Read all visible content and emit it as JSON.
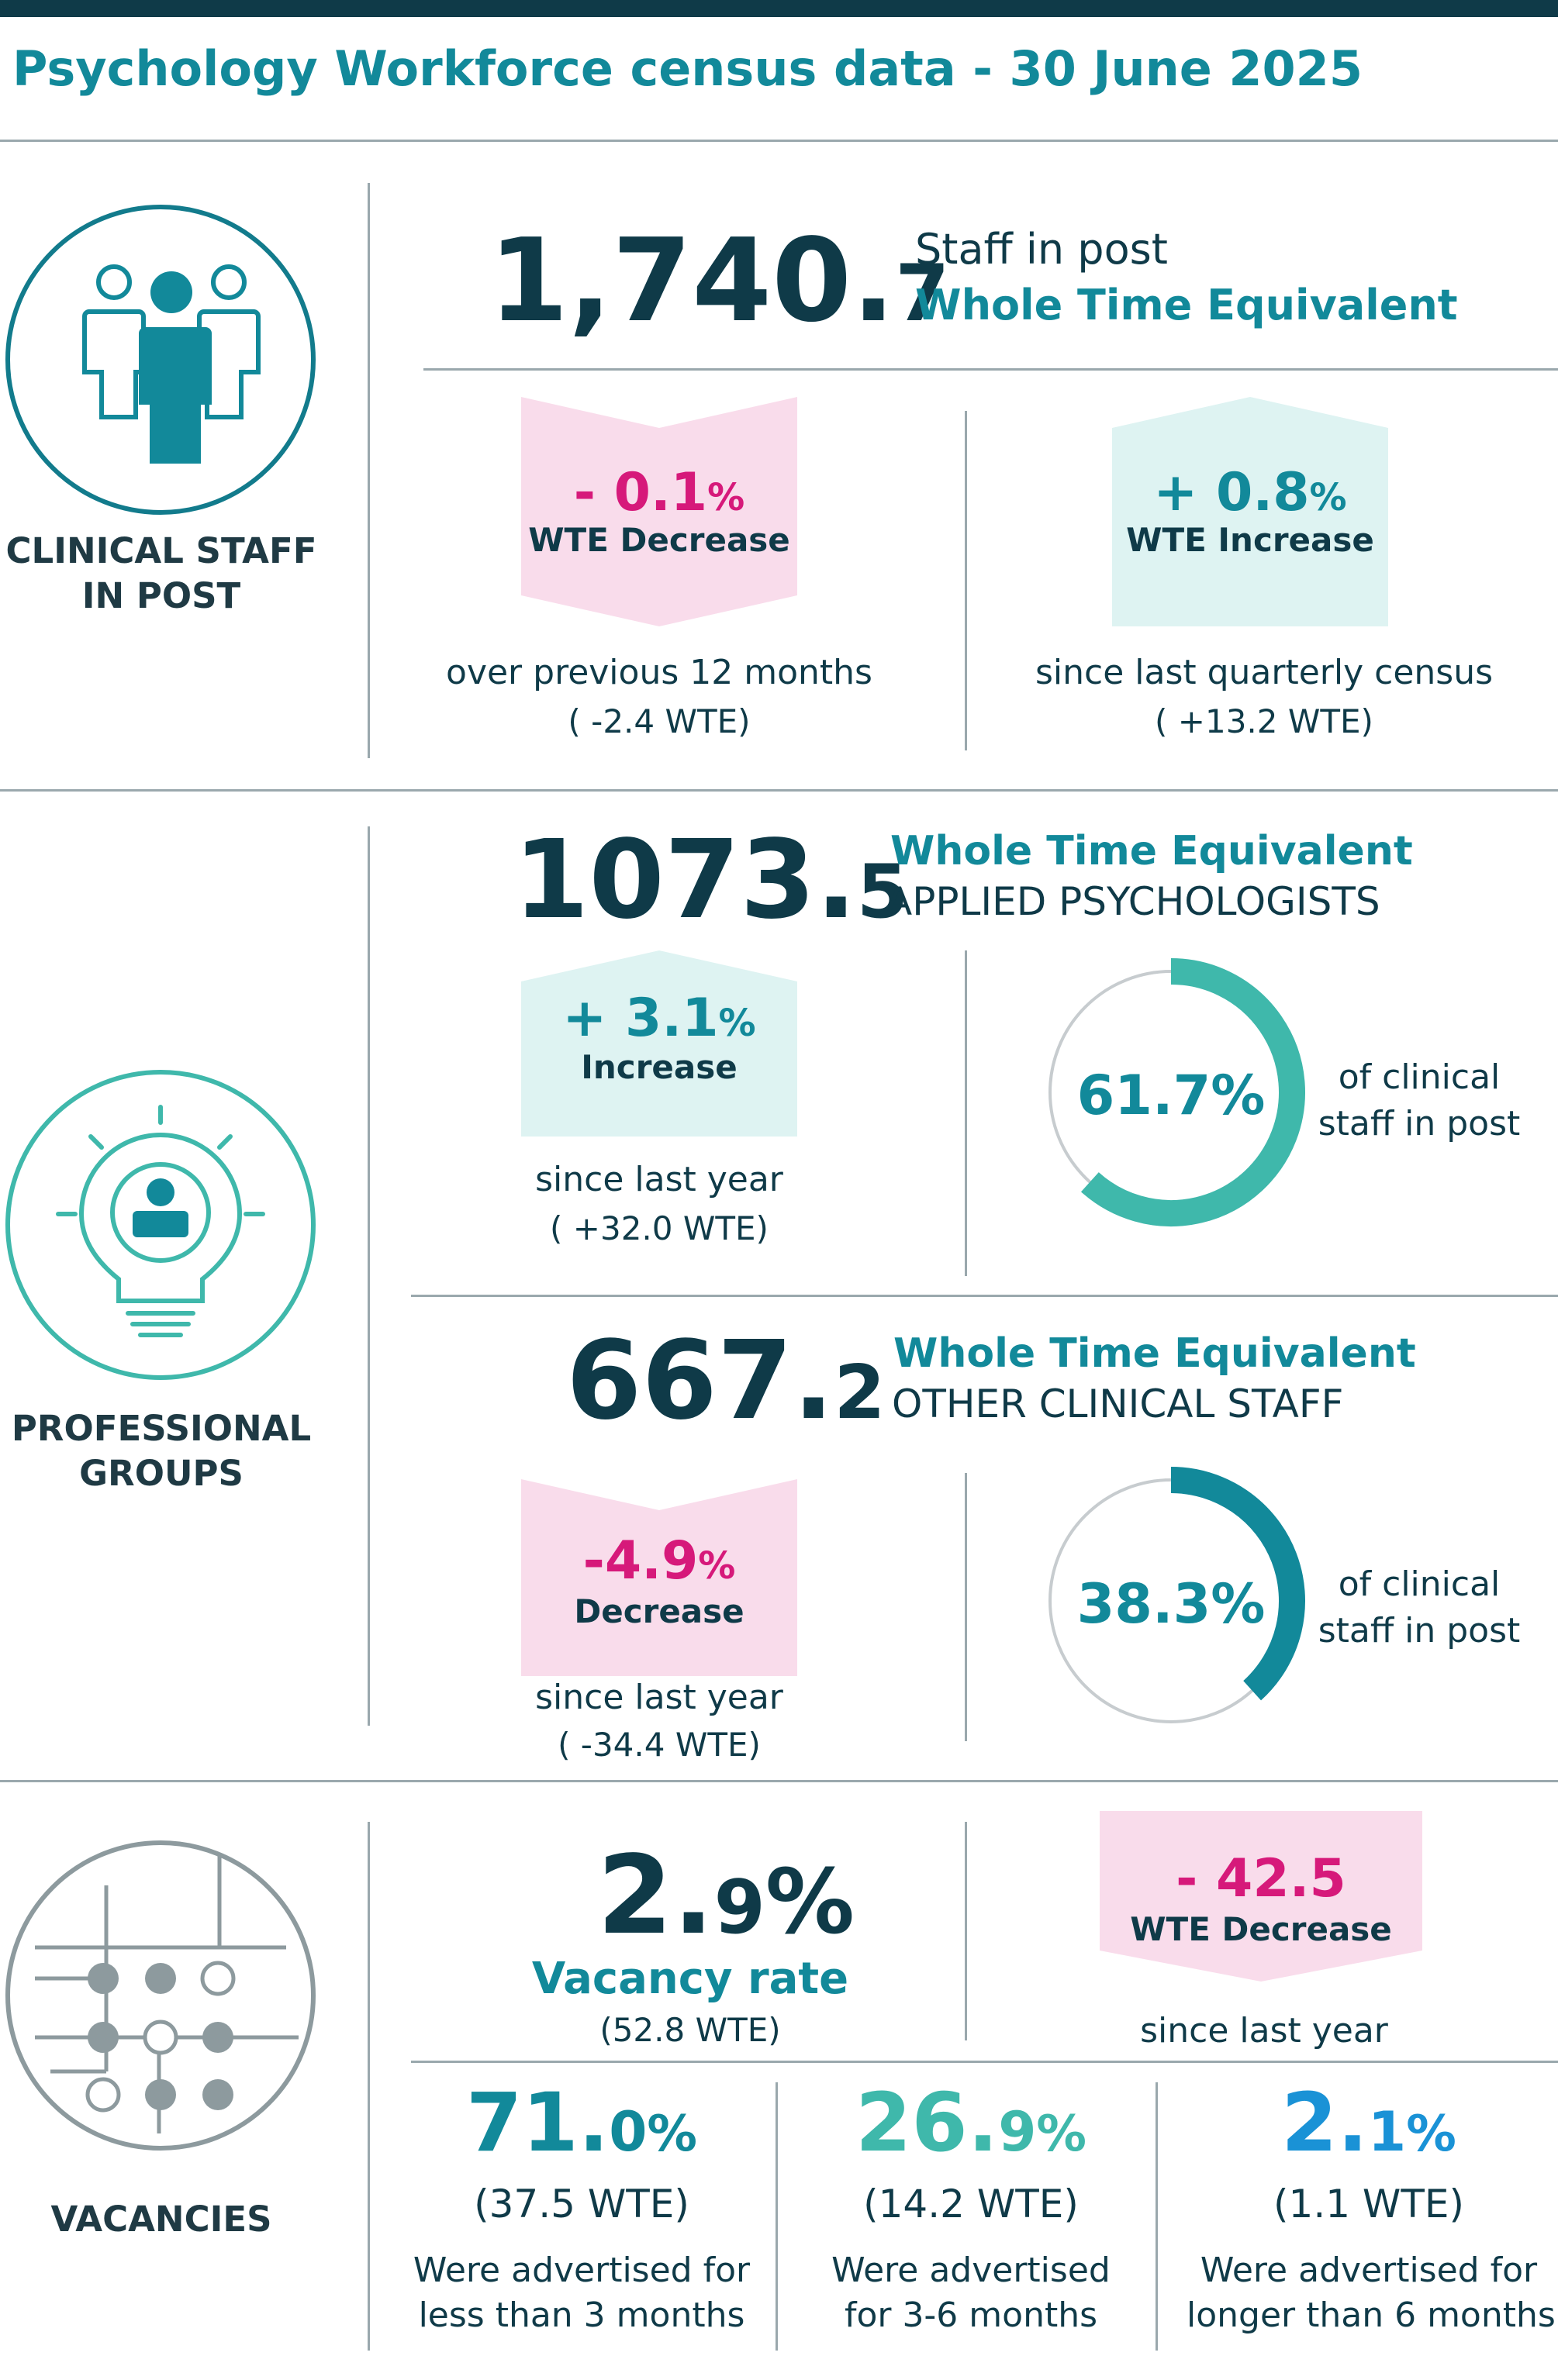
{
  "title": "Psychology Workforce census data - 30 June 2025",
  "colors": {
    "teal": "#12899a",
    "dark": "#0f3a48",
    "pink": "#d6197a",
    "pink_bg": "#f9dceb",
    "teal_bg": "#def3f2",
    "mint": "#3fb8ab",
    "blue": "#1a92d6"
  },
  "clinical": {
    "label_line1": "CLINICAL STAFF",
    "label_line2": "IN POST",
    "wte_int": "1,740.",
    "wte_dec": "7",
    "staff_label": "Staff in post",
    "wte_label": "Whole Time Equivalent",
    "change_year": {
      "pct": "- 0.1",
      "pct_sym": "%",
      "word": "WTE Decrease",
      "caption": "over previous 12 months",
      "wte": "( -2.4 WTE)"
    },
    "change_quarter": {
      "pct": "+ 0.8",
      "pct_sym": "%",
      "word": "WTE Increase",
      "caption": "since last quarterly census",
      "wte": "( +13.2 WTE)"
    }
  },
  "professional": {
    "label_line1": "PROFESSIONAL",
    "label_line2": "GROUPS",
    "applied": {
      "wte_int": "1073.",
      "wte_dec": "5",
      "wte_label": "Whole Time Equivalent",
      "group": "APPLIED PSYCHOLOGISTS",
      "change": {
        "pct": "+ 3.1",
        "pct_sym": "%",
        "word": "Increase",
        "caption": "since last year",
        "wte": "( +32.0 WTE)"
      },
      "share": {
        "value": "61.7%",
        "fraction": 0.617,
        "caption_line1": "of clinical",
        "caption_line2": "staff in post"
      }
    },
    "other": {
      "wte_int": "667.",
      "wte_dec": "2",
      "wte_label": "Whole Time Equivalent",
      "group": "OTHER CLINICAL STAFF",
      "change": {
        "pct": "-4.9",
        "pct_sym": "%",
        "word": "Decrease",
        "caption": "since last year",
        "wte": "( -34.4 WTE)"
      },
      "share": {
        "value": "38.3%",
        "fraction": 0.383,
        "caption_line1": "of clinical",
        "caption_line2": "staff in post"
      }
    }
  },
  "vacancies": {
    "label": "VACANCIES",
    "rate_int": "2.",
    "rate_dec": "9",
    "rate_sym": "%",
    "rate_label": "Vacancy rate",
    "rate_wte": "(52.8 WTE)",
    "change": {
      "value": "- 42.5",
      "word": "WTE Decrease",
      "caption": "since last year"
    },
    "breakdown": [
      {
        "int": "71.",
        "dec": "0",
        "sym": "%",
        "wte": "(37.5 WTE)",
        "line1": "Were advertised for",
        "line2": "less than 3 months"
      },
      {
        "int": "26.",
        "dec": "9",
        "sym": "%",
        "wte": "(14.2 WTE)",
        "line1": "Were advertised",
        "line2": "for 3-6 months"
      },
      {
        "int": "2.",
        "dec": "1",
        "sym": "%",
        "wte": "(1.1 WTE)",
        "line1": "Were advertised for",
        "line2": "longer than 6 months"
      }
    ]
  }
}
